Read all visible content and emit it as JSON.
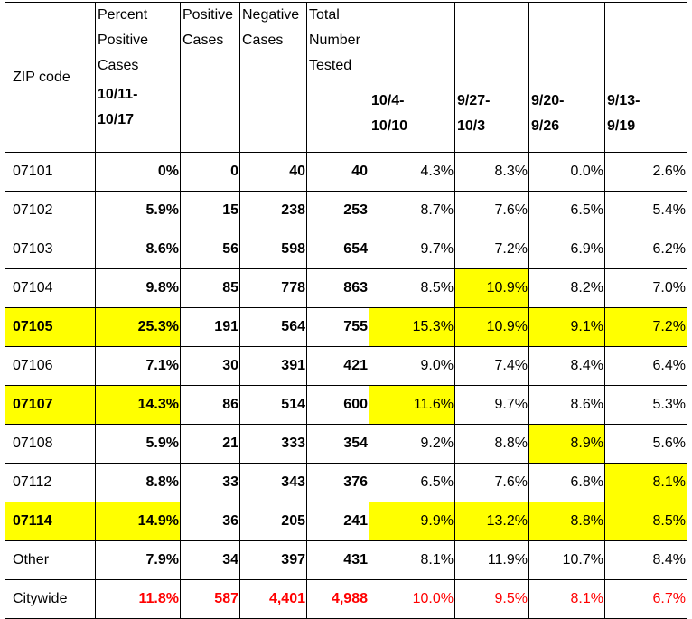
{
  "headers": {
    "zip": "ZIP code",
    "pct_positive": "Percent Positive Cases",
    "pct_period": "10/11-\n10/17",
    "positive": "Positive Cases",
    "negative": "Negative Cases",
    "total": "Total Number Tested",
    "w1": "10/4-\n10/10",
    "w2": "9/27-\n10/3",
    "w3": "9/20-\n9/26",
    "w4": "9/13-\n9/19"
  },
  "highlight_color": "#ffff00",
  "citywide_color": "#ff0000",
  "rows": [
    {
      "zip": "07101",
      "zip_bold": false,
      "pct": "0%",
      "pos": "0",
      "neg": "40",
      "total": "40",
      "w1": "4.3%",
      "w2": "8.3%",
      "w3": "0.0%",
      "w4": "2.6%"
    },
    {
      "zip": "07102",
      "zip_bold": false,
      "pct": "5.9%",
      "pos": "15",
      "neg": "238",
      "total": "253",
      "w1": "8.7%",
      "w2": "7.6%",
      "w3": "6.5%",
      "w4": "5.4%"
    },
    {
      "zip": "07103",
      "zip_bold": false,
      "pct": "8.6%",
      "pos": "56",
      "neg": "598",
      "total": "654",
      "w1": "9.7%",
      "w2": "7.2%",
      "w3": "6.9%",
      "w4": "6.2%"
    },
    {
      "zip": "07104",
      "zip_bold": false,
      "pct": "9.8%",
      "pos": "85",
      "neg": "778",
      "total": "863",
      "w1": "8.5%",
      "w2": "10.9%",
      "w3": "8.2%",
      "w4": "7.0%",
      "hl": [
        "w2"
      ]
    },
    {
      "zip": "07105",
      "zip_bold": true,
      "pct": "25.3%",
      "pos": "191",
      "neg": "564",
      "total": "755",
      "w1": "15.3%",
      "w2": "10.9%",
      "w3": "9.1%",
      "w4": "7.2%",
      "hl": [
        "zip",
        "pct",
        "w1",
        "w2",
        "w3",
        "w4"
      ]
    },
    {
      "zip": "07106",
      "zip_bold": false,
      "pct": "7.1%",
      "pos": "30",
      "neg": "391",
      "total": "421",
      "w1": "9.0%",
      "w2": "7.4%",
      "w3": "8.4%",
      "w4": "6.4%"
    },
    {
      "zip": "07107",
      "zip_bold": true,
      "pct": "14.3%",
      "pos": "86",
      "neg": "514",
      "total": "600",
      "w1": "11.6%",
      "w2": "9.7%",
      "w3": "8.6%",
      "w4": "5.3%",
      "hl": [
        "zip",
        "pct",
        "w1"
      ]
    },
    {
      "zip": "07108",
      "zip_bold": false,
      "pct": "5.9%",
      "pos": "21",
      "neg": "333",
      "total": "354",
      "w1": "9.2%",
      "w2": "8.8%",
      "w3": "8.9%",
      "w4": "5.6%",
      "hl": [
        "w3"
      ]
    },
    {
      "zip": "07112",
      "zip_bold": false,
      "pct": "8.8%",
      "pos": "33",
      "neg": "343",
      "total": "376",
      "w1": "6.5%",
      "w2": "7.6%",
      "w3": "6.8%",
      "w4": "8.1%",
      "hl": [
        "w4"
      ]
    },
    {
      "zip": "07114",
      "zip_bold": true,
      "pct": "14.9%",
      "pos": "36",
      "neg": "205",
      "total": "241",
      "w1": "9.9%",
      "w2": "13.2%",
      "w3": "8.8%",
      "w4": "8.5%",
      "hl": [
        "zip",
        "pct",
        "w1",
        "w2",
        "w3",
        "w4"
      ]
    },
    {
      "zip": "Other",
      "zip_bold": false,
      "pct": "7.9%",
      "pos": "34",
      "neg": "397",
      "total": "431",
      "w1": "8.1%",
      "w2": "11.9%",
      "w3": "10.7%",
      "w4": "8.4%"
    },
    {
      "zip": "Citywide",
      "zip_bold": false,
      "pct": "11.8%",
      "pos": "587",
      "neg": "4,401",
      "total": "4,988",
      "w1": "10.0%",
      "w2": "9.5%",
      "w3": "8.1%",
      "w4": "6.7%",
      "citywide": true
    }
  ]
}
